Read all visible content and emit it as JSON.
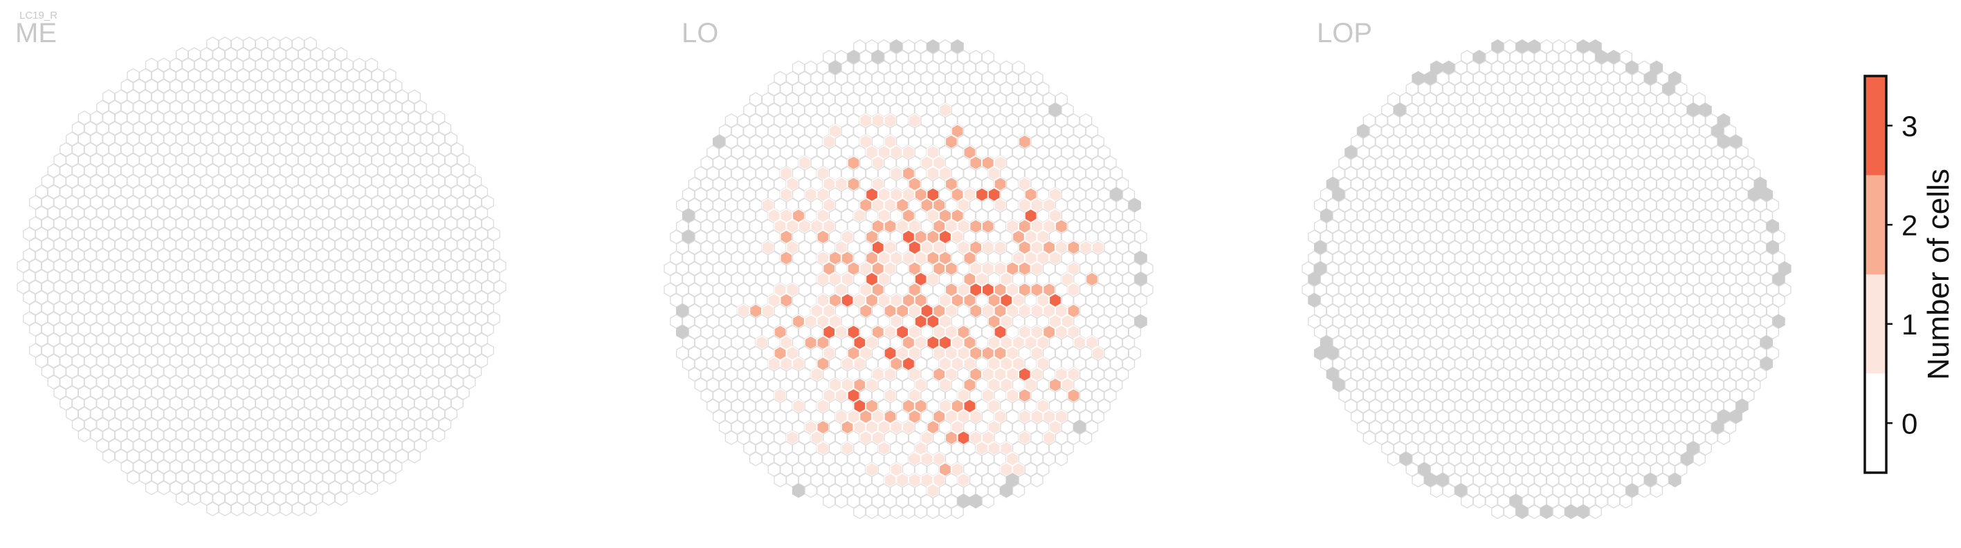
{
  "super_title": "LC19_R",
  "chart_data": [
    {
      "type": "heatmap",
      "subtype": "hexagonal",
      "title": "ME",
      "note": "Hexagonal column grid; no cells have a value > 0 in this neuropil",
      "nonzero_cells": [],
      "unmapped_edge_cells": false
    },
    {
      "type": "heatmap",
      "subtype": "hexagonal",
      "title": "LO",
      "note": "Counts concentrated in the central / lower-central region; maximum 3",
      "value_distribution": {
        "1": "many",
        "2": "several dozen",
        "3": "about 12"
      },
      "unmapped_edge_cells": true
    },
    {
      "type": "heatmap",
      "subtype": "hexagonal",
      "title": "LOP",
      "note": "No cells have a value > 0; ring of grey (unmapped) columns around the rim",
      "nonzero_cells": [],
      "unmapped_edge_cells": true
    }
  ],
  "colorbar": {
    "label": "Number of cells",
    "ticks": [
      "0",
      "1",
      "2",
      "3"
    ],
    "levels": [
      0,
      1,
      2,
      3
    ],
    "range": [
      -0.5,
      3.5
    ],
    "colors": [
      "#ffffff",
      "#fbe5dc",
      "#f7ae93",
      "#f26548"
    ]
  },
  "colors": {
    "empty_fill": "#ffffff",
    "empty_stroke": "#dcdcdc",
    "unmapped_fill": "#cccccc",
    "title_color": "#c8c8c8"
  }
}
